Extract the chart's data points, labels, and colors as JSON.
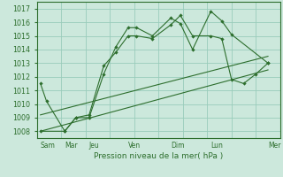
{
  "xlabel": "Pression niveau de la mer( hPa )",
  "background_color": "#cce8dc",
  "grid_color": "#99ccbb",
  "line_color": "#2d6e2d",
  "ylim": [
    1007.5,
    1017.5
  ],
  "yticks": [
    1008,
    1009,
    1010,
    1011,
    1012,
    1013,
    1014,
    1015,
    1016,
    1017
  ],
  "xlim": [
    0,
    20
  ],
  "x_day_labels": [
    "Sam",
    "Mar",
    "Jeu",
    "Ven",
    "Dim",
    "Lun",
    "Mer"
  ],
  "x_day_positions": [
    0.3,
    2.3,
    4.3,
    7.5,
    11.0,
    14.3,
    19.0
  ],
  "x_grid_positions": [
    0,
    2,
    4,
    6,
    8,
    10,
    12,
    14,
    16,
    18,
    20
  ],
  "line1_x": [
    0.3,
    0.8,
    2.3,
    3.2,
    4.3,
    5.5,
    6.5,
    7.5,
    8.2,
    9.5,
    11.0,
    11.8,
    12.8,
    14.3,
    15.2,
    16.0,
    19.0
  ],
  "line1_y": [
    1011.5,
    1010.2,
    1008.0,
    1009.0,
    1009.0,
    1012.2,
    1014.2,
    1015.6,
    1015.6,
    1015.0,
    1016.3,
    1015.9,
    1014.0,
    1016.8,
    1016.1,
    1015.1,
    1013.0
  ],
  "line2_x": [
    0.3,
    2.3,
    3.2,
    4.3,
    5.5,
    6.5,
    7.5,
    8.2,
    9.5,
    11.0,
    11.8,
    12.8,
    14.3,
    15.2,
    16.0,
    17.0,
    18.0,
    19.0
  ],
  "line2_y": [
    1008.0,
    1008.0,
    1009.0,
    1009.2,
    1012.8,
    1013.8,
    1015.0,
    1015.0,
    1014.8,
    1015.8,
    1016.5,
    1015.0,
    1015.0,
    1014.8,
    1011.8,
    1011.5,
    1012.2,
    1013.0
  ],
  "line3_x": [
    0.3,
    19.0
  ],
  "line3_y": [
    1008.0,
    1012.5
  ],
  "line4_x": [
    0.3,
    19.0
  ],
  "line4_y": [
    1009.2,
    1013.5
  ]
}
